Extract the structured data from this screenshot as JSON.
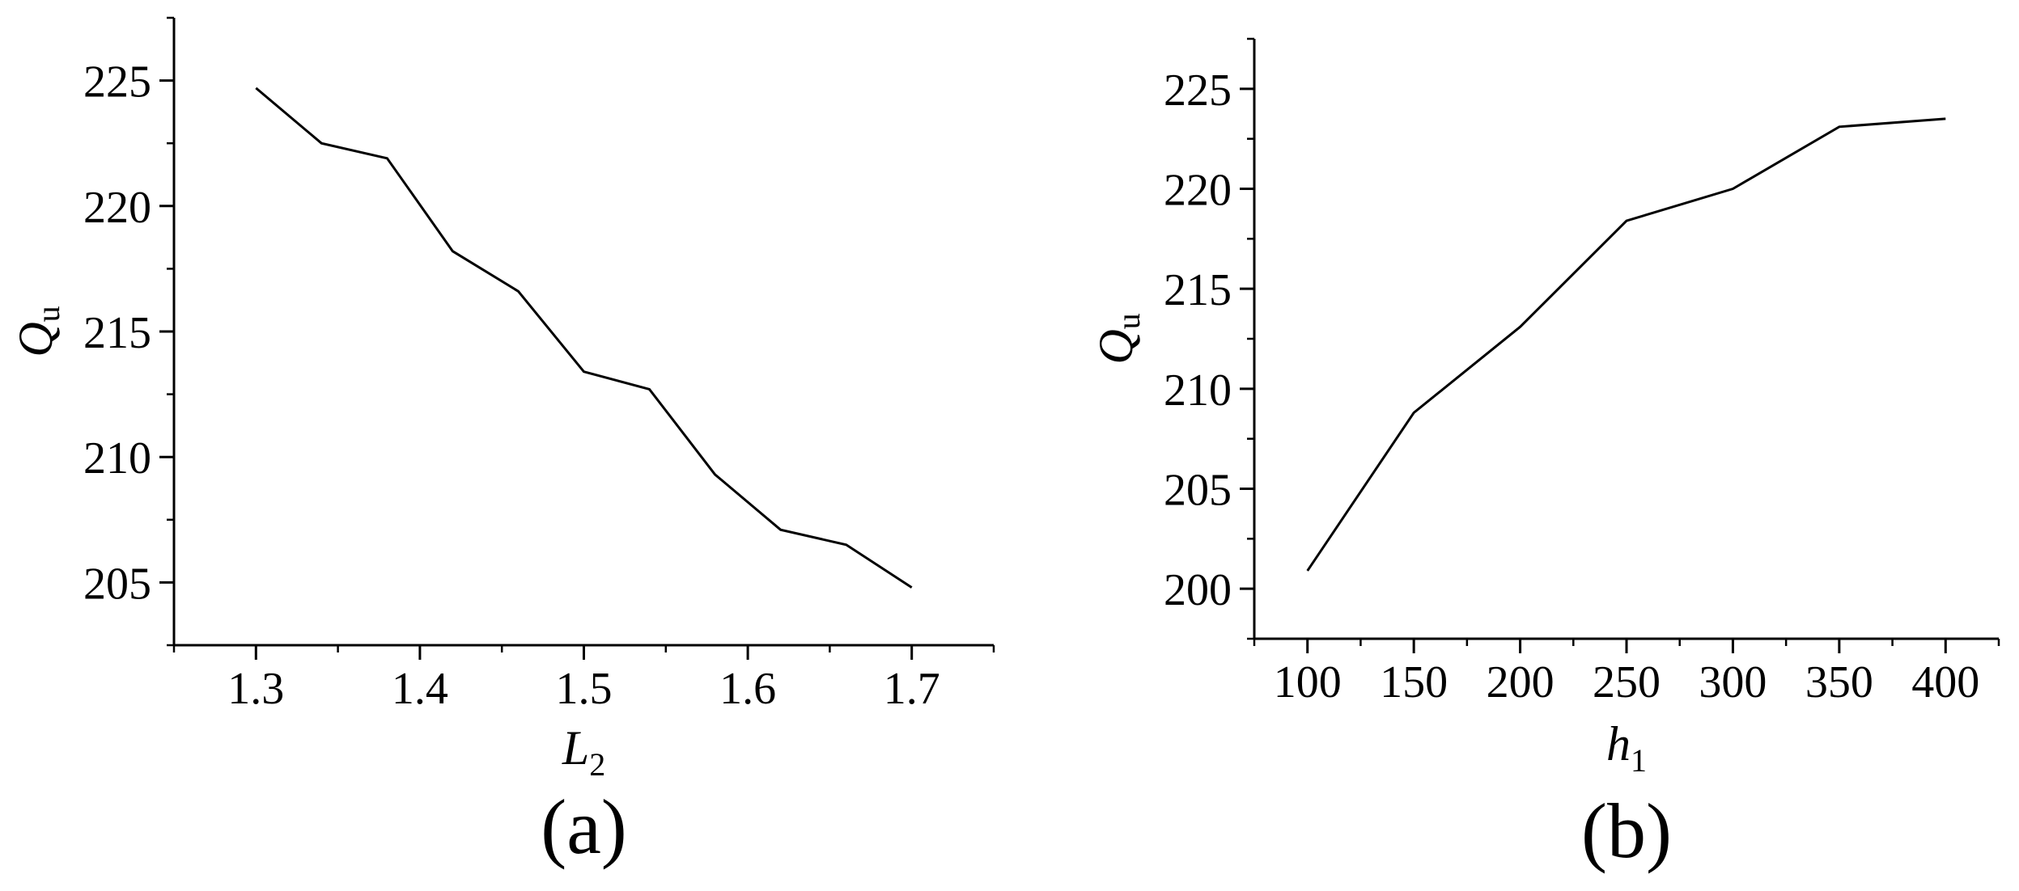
{
  "chart_data": [
    {
      "type": "line",
      "panel_label": "(a)",
      "xlabel": {
        "main": "L",
        "sub": "2"
      },
      "ylabel": {
        "main": "Q",
        "sub": "u"
      },
      "xlim": [
        1.25,
        1.75
      ],
      "ylim": [
        202.5,
        227.5
      ],
      "xticks": [
        1.3,
        1.4,
        1.5,
        1.6,
        1.7
      ],
      "xtick_labels": [
        "1.3",
        "1.4",
        "1.5",
        "1.6",
        "1.7"
      ],
      "yticks": [
        205,
        210,
        215,
        220,
        225
      ],
      "ytick_labels": [
        "205",
        "210",
        "215",
        "220",
        "225"
      ],
      "grid": false,
      "series": [
        {
          "x": [
            1.3,
            1.34,
            1.38,
            1.42,
            1.46,
            1.5,
            1.54,
            1.58,
            1.62,
            1.66,
            1.7
          ],
          "y": [
            224.7,
            222.5,
            221.9,
            218.2,
            216.6,
            213.4,
            212.7,
            209.3,
            207.1,
            206.5,
            204.8
          ]
        }
      ],
      "colors": {
        "line": "#000000",
        "axis": "#000000"
      }
    },
    {
      "type": "line",
      "panel_label": "(b)",
      "xlabel": {
        "main": "h",
        "sub": "1"
      },
      "ylabel": {
        "main": "Q",
        "sub": "u"
      },
      "xlim": [
        75,
        425
      ],
      "ylim": [
        197.5,
        227.5
      ],
      "xticks": [
        100,
        150,
        200,
        250,
        300,
        350,
        400
      ],
      "xtick_labels": [
        "100",
        "150",
        "200",
        "250",
        "300",
        "350",
        "400"
      ],
      "yticks": [
        200,
        205,
        210,
        215,
        220,
        225
      ],
      "ytick_labels": [
        "200",
        "205",
        "210",
        "215",
        "220",
        "225"
      ],
      "grid": false,
      "series": [
        {
          "x": [
            100,
            150,
            200,
            250,
            300,
            350,
            400
          ],
          "y": [
            200.9,
            208.8,
            213.1,
            218.4,
            220.0,
            223.1,
            223.5
          ]
        }
      ],
      "colors": {
        "line": "#000000",
        "axis": "#000000"
      }
    }
  ]
}
